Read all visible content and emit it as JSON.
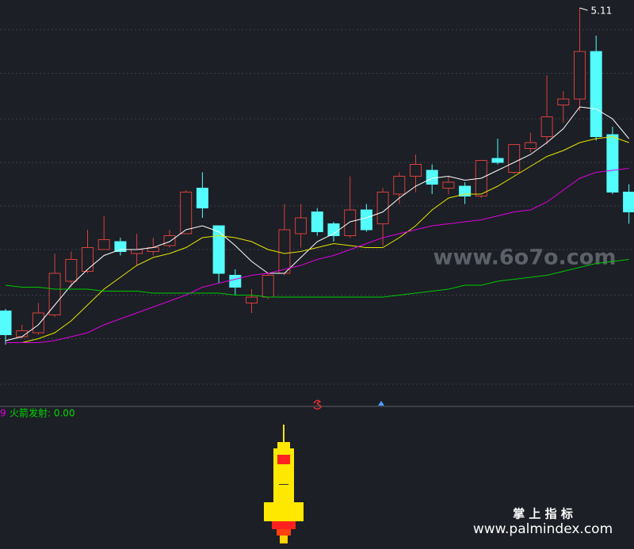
{
  "chart_data": {
    "type": "candlestick",
    "ylim": [
      3.11,
      5.15
    ],
    "ygrid": [
      5.0,
      4.78,
      4.55,
      4.33,
      4.11,
      3.89,
      3.66,
      3.44,
      3.21
    ],
    "up_color": "#d8403c",
    "down_color": "#54fcfc",
    "open": [
      3.58,
      3.45,
      3.47,
      3.56,
      3.73,
      3.78,
      3.89,
      3.93,
      3.87,
      3.88,
      3.91,
      3.97,
      4.2,
      4.01,
      3.76,
      3.62,
      3.65,
      3.77,
      3.97,
      4.08,
      4.02,
      3.96,
      4.09,
      4.02,
      4.17,
      4.26,
      4.29,
      4.2,
      4.21,
      4.16,
      4.35,
      4.28,
      4.4,
      4.46,
      4.62,
      4.65,
      4.89,
      4.47,
      4.18
    ],
    "high": [
      3.59,
      3.51,
      3.62,
      3.87,
      3.88,
      3.99,
      4.06,
      3.95,
      3.97,
      3.95,
      3.99,
      4.19,
      4.28,
      4.01,
      3.79,
      3.69,
      3.77,
      4.12,
      4.12,
      4.1,
      4.03,
      4.26,
      4.12,
      4.2,
      4.28,
      4.37,
      4.32,
      4.26,
      4.23,
      4.34,
      4.45,
      4.42,
      4.48,
      4.77,
      4.69,
      5.11,
      4.97,
      4.51,
      4.22
    ],
    "low": [
      3.41,
      3.44,
      3.46,
      3.55,
      3.7,
      3.77,
      3.89,
      3.86,
      3.81,
      3.86,
      3.9,
      3.97,
      4.05,
      3.72,
      3.66,
      3.57,
      3.64,
      3.76,
      3.9,
      3.96,
      3.93,
      3.95,
      3.98,
      3.91,
      4.12,
      4.18,
      4.17,
      4.17,
      4.12,
      4.15,
      4.32,
      4.27,
      4.38,
      4.42,
      4.53,
      4.59,
      4.44,
      4.17,
      4.02
    ],
    "close": [
      3.46,
      3.48,
      3.57,
      3.77,
      3.84,
      3.9,
      3.94,
      3.88,
      3.89,
      3.9,
      3.96,
      4.18,
      4.1,
      3.77,
      3.7,
      3.65,
      3.76,
      3.99,
      4.05,
      3.98,
      3.96,
      4.09,
      3.99,
      4.18,
      4.26,
      4.32,
      4.22,
      4.23,
      4.16,
      4.34,
      4.33,
      4.42,
      4.43,
      4.56,
      4.65,
      4.89,
      4.46,
      4.18,
      4.08
    ],
    "series": [
      {
        "color": "#ffffff",
        "values": [
          3.43,
          3.45,
          3.51,
          3.61,
          3.71,
          3.79,
          3.86,
          3.89,
          3.89,
          3.9,
          3.93,
          3.99,
          4.01,
          3.98,
          3.91,
          3.83,
          3.77,
          3.77,
          3.85,
          3.93,
          3.97,
          4.03,
          4.05,
          4.08,
          4.15,
          4.21,
          4.25,
          4.26,
          4.24,
          4.25,
          4.29,
          4.33,
          4.37,
          4.43,
          4.5,
          4.61,
          4.6,
          4.55,
          4.45
        ]
      },
      {
        "color": "#e6e600",
        "values": [
          3.42,
          3.42,
          3.44,
          3.47,
          3.53,
          3.61,
          3.69,
          3.75,
          3.81,
          3.85,
          3.87,
          3.9,
          3.95,
          3.96,
          3.95,
          3.93,
          3.89,
          3.87,
          3.88,
          3.9,
          3.92,
          3.91,
          3.9,
          3.9,
          3.95,
          4.01,
          4.09,
          4.15,
          4.17,
          4.17,
          4.21,
          4.26,
          4.31,
          4.36,
          4.39,
          4.43,
          4.45,
          4.46,
          4.43
        ]
      },
      {
        "color": "#e000e0",
        "values": [
          3.42,
          3.42,
          3.42,
          3.43,
          3.45,
          3.47,
          3.51,
          3.54,
          3.57,
          3.6,
          3.63,
          3.66,
          3.7,
          3.72,
          3.74,
          3.76,
          3.77,
          3.79,
          3.81,
          3.84,
          3.86,
          3.89,
          3.92,
          3.95,
          3.97,
          3.99,
          4.01,
          4.02,
          4.03,
          4.04,
          4.06,
          4.08,
          4.09,
          4.13,
          4.19,
          4.25,
          4.28,
          4.29,
          4.3
        ]
      },
      {
        "color": "#00c800",
        "values": [
          3.71,
          3.7,
          3.7,
          3.69,
          3.69,
          3.69,
          3.68,
          3.68,
          3.68,
          3.67,
          3.67,
          3.67,
          3.67,
          3.67,
          3.66,
          3.66,
          3.65,
          3.65,
          3.65,
          3.65,
          3.65,
          3.65,
          3.65,
          3.65,
          3.66,
          3.67,
          3.68,
          3.69,
          3.71,
          3.71,
          3.73,
          3.74,
          3.75,
          3.76,
          3.78,
          3.8,
          3.82,
          3.83,
          3.84
        ]
      }
    ],
    "indicator_prefix": "9",
    "indicator_label": "火箭发射: 0.00",
    "watermark": "www.6o7o.com",
    "brand_cn": "掌 上 指 标",
    "brand_url": "www.palmindex.com"
  }
}
